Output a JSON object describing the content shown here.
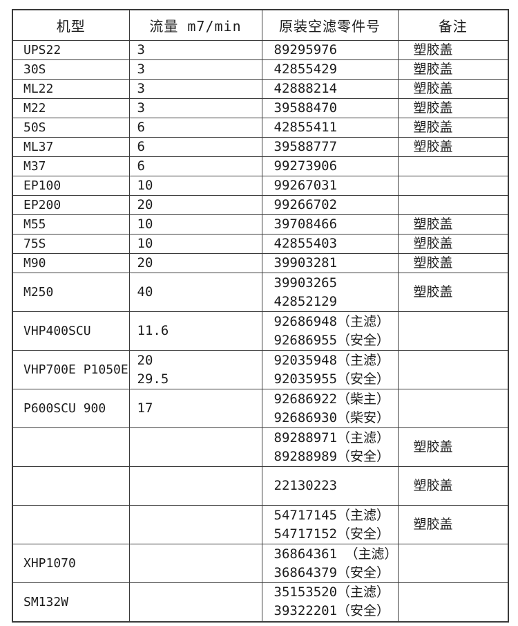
{
  "colors": {
    "background": "#ffffff",
    "border": "#3a3a3a",
    "text": "#1d1d1d"
  },
  "table": {
    "headers": [
      {
        "label": "机型"
      },
      {
        "label": "流量 m7/min"
      },
      {
        "label": "原装空滤零件号"
      },
      {
        "label": "备注"
      }
    ],
    "rows": [
      {
        "size": "single",
        "model": "UPS22",
        "flow": [
          "3"
        ],
        "parts": [
          "89295976"
        ],
        "remark": "塑胶盖"
      },
      {
        "size": "single",
        "model": "30S",
        "flow": [
          "3"
        ],
        "parts": [
          "42855429"
        ],
        "remark": "塑胶盖"
      },
      {
        "size": "single",
        "model": "ML22",
        "flow": [
          "3"
        ],
        "parts": [
          "42888214"
        ],
        "remark": "塑胶盖"
      },
      {
        "size": "single",
        "model": "M22",
        "flow": [
          "3"
        ],
        "parts": [
          "39588470"
        ],
        "remark": "塑胶盖"
      },
      {
        "size": "single",
        "model": "50S",
        "flow": [
          "6"
        ],
        "parts": [
          "42855411"
        ],
        "remark": "塑胶盖"
      },
      {
        "size": "single",
        "model": "ML37",
        "flow": [
          "6"
        ],
        "parts": [
          "39588777"
        ],
        "remark": "塑胶盖"
      },
      {
        "size": "single",
        "model": "M37",
        "flow": [
          "6"
        ],
        "parts": [
          "99273906"
        ],
        "remark": ""
      },
      {
        "size": "single",
        "model": "EP100",
        "flow": [
          "10"
        ],
        "parts": [
          "99267031"
        ],
        "remark": ""
      },
      {
        "size": "single",
        "model": "EP200",
        "flow": [
          "20"
        ],
        "parts": [
          "99266702"
        ],
        "remark": ""
      },
      {
        "size": "single",
        "model": "M55",
        "flow": [
          "10"
        ],
        "parts": [
          "39708466"
        ],
        "remark": "塑胶盖"
      },
      {
        "size": "single",
        "model": "75S",
        "flow": [
          "10"
        ],
        "parts": [
          "42855403"
        ],
        "remark": "塑胶盖"
      },
      {
        "size": "single",
        "model": "M90",
        "flow": [
          "20"
        ],
        "parts": [
          "39903281"
        ],
        "remark": "塑胶盖"
      },
      {
        "size": "double",
        "model": "M250",
        "flow": [
          "40"
        ],
        "parts": [
          "39903265",
          "42852129"
        ],
        "remark": "塑胶盖"
      },
      {
        "size": "double",
        "model": "VHP400SCU",
        "flow": [
          "11.6"
        ],
        "parts": [
          "92686948（主滤）",
          "92686955（安全）"
        ],
        "remark": ""
      },
      {
        "size": "double",
        "model": "VHP700E P1050E",
        "flow": [
          "20",
          "29.5"
        ],
        "parts": [
          "92035948（主滤）",
          "92035955（安全）"
        ],
        "remark": ""
      },
      {
        "size": "double",
        "model": "P600SCU 900",
        "flow": [
          "17"
        ],
        "parts": [
          "92686922（柴主）",
          "92686930（柴安）"
        ],
        "remark": ""
      },
      {
        "size": "double",
        "model": "",
        "flow": [],
        "parts": [
          "89288971（主滤）",
          "89288989（安全）"
        ],
        "remark": "塑胶盖"
      },
      {
        "size": "double",
        "model": "",
        "flow": [],
        "parts": [
          "22130223"
        ],
        "remark": "塑胶盖"
      },
      {
        "size": "double",
        "model": "",
        "flow": [],
        "parts": [
          "54717145（主滤）",
          "54717152（安全）"
        ],
        "remark": "塑胶盖"
      },
      {
        "size": "double",
        "model": "XHP1070",
        "flow": [],
        "parts": [
          "36864361 （主滤）",
          "36864379（安全）"
        ],
        "remark": ""
      },
      {
        "size": "double",
        "model": "SM132W",
        "flow": [],
        "parts": [
          "35153520（主滤）",
          "39322201（安全）"
        ],
        "remark": ""
      }
    ]
  }
}
